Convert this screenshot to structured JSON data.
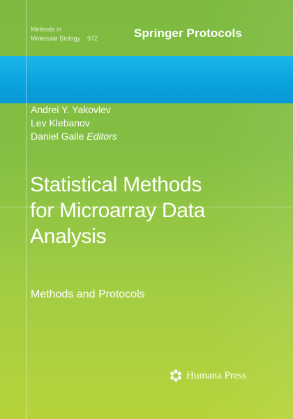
{
  "series": {
    "line1": "Methods in",
    "line2": "Molecular Biology",
    "number": "972"
  },
  "brand": "Springer Protocols",
  "editors": {
    "names": [
      "Andrei Y. Yakovlev",
      "Lev Klebanov",
      "Daniel Gaile"
    ],
    "role": "Editors"
  },
  "title": {
    "lines": [
      "Statistical Methods",
      "for Microarray Data",
      "Analysis"
    ]
  },
  "subtitle": "Methods and Protocols",
  "publisher": {
    "name": "Humana Press",
    "icon": "humana-flower-icon"
  },
  "colors": {
    "background_top": "#7dba3f",
    "background_bottom": "#b6d43a",
    "band": "#0aa3de",
    "text": "#ffffff"
  }
}
